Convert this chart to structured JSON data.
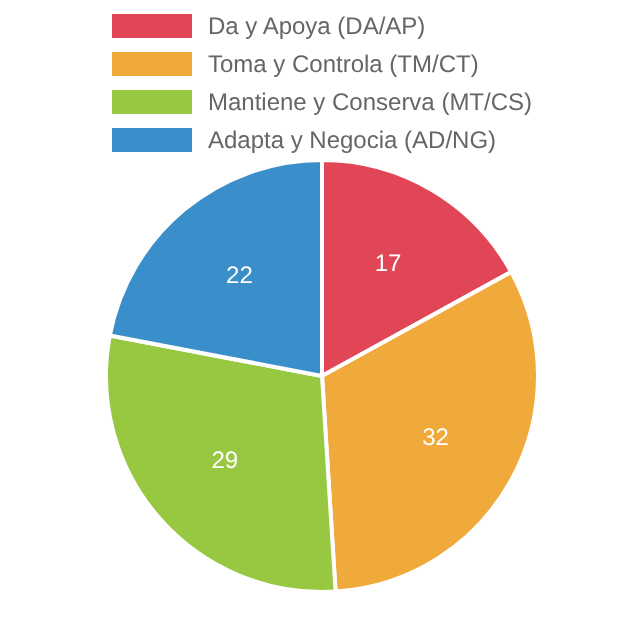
{
  "chart_data": {
    "type": "pie",
    "categories": [
      "Da y Apoya (DA/AP)",
      "Toma y Controla (TM/CT)",
      "Mantiene y Conserva (MT/CS)",
      "Adapta y Negocia (AD/NG)"
    ],
    "values": [
      17,
      32,
      29,
      22
    ],
    "colors": [
      "#e04656",
      "#f0a93b",
      "#98c841",
      "#3a8fcb"
    ],
    "data_labels": true,
    "legend": "top"
  }
}
